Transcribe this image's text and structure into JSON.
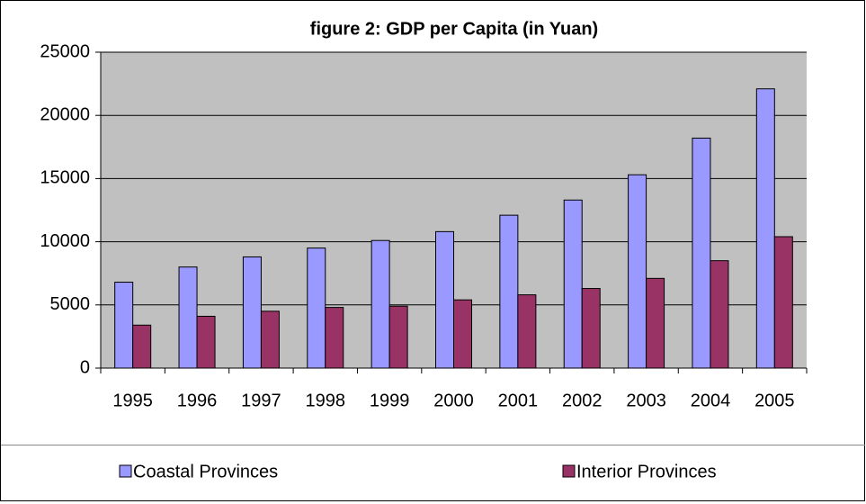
{
  "chart_data": {
    "type": "bar",
    "title": "figure 2: GDP per Capita (in Yuan)",
    "categories": [
      "1995",
      "1996",
      "1997",
      "1998",
      "1999",
      "2000",
      "2001",
      "2002",
      "2003",
      "2004",
      "2005"
    ],
    "series": [
      {
        "name": "Coastal Provinces",
        "color": "#9999ff",
        "values": [
          6800,
          8000,
          8800,
          9500,
          10100,
          10800,
          12100,
          13300,
          15300,
          18200,
          22100
        ]
      },
      {
        "name": "Interior Provinces",
        "color": "#993366",
        "values": [
          3400,
          4100,
          4500,
          4800,
          4900,
          5400,
          5800,
          6300,
          7100,
          8500,
          10400
        ]
      }
    ],
    "ylim": [
      0,
      25000
    ],
    "yticks": [
      0,
      5000,
      10000,
      15000,
      20000,
      25000
    ],
    "grid": true,
    "legend": "bottom"
  }
}
